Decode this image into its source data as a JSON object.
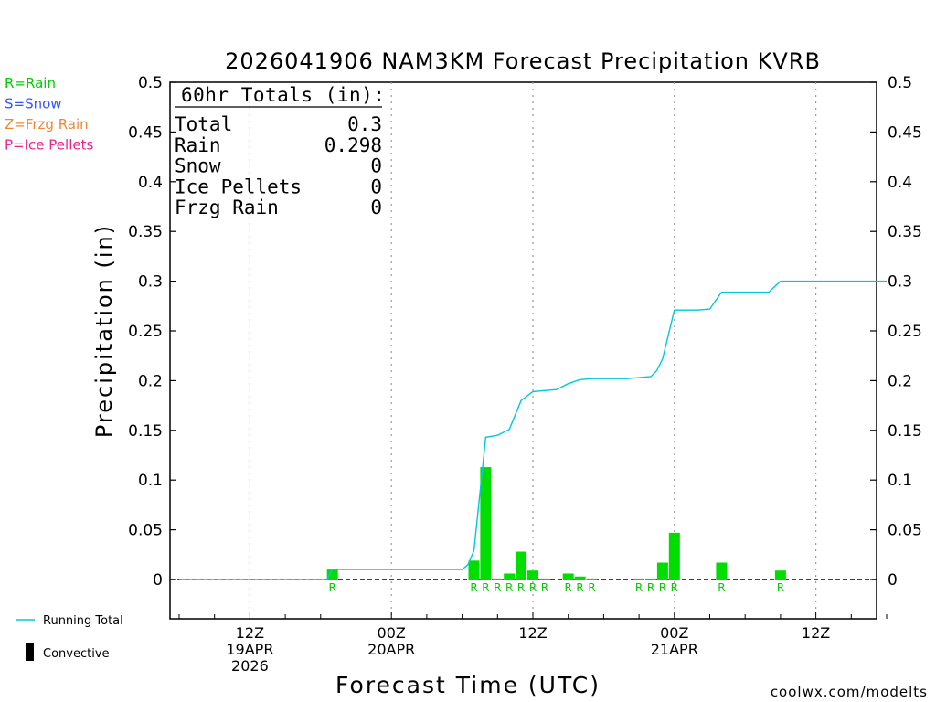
{
  "chart_data": {
    "type": "bar",
    "title": "2026041906 NAM3KM Forecast Precipitation KVRB",
    "xlabel": "Forecast Time (UTC)",
    "ylabel": "Precipitation (in)",
    "ylim": [
      -0.04,
      0.5
    ],
    "y_ticks": [
      0,
      0.05,
      0.1,
      0.15,
      0.2,
      0.25,
      0.3,
      0.35,
      0.4,
      0.45,
      0.5
    ],
    "y_tick_labels": [
      "0",
      "0.05",
      "0.1",
      "0.15",
      "0.2",
      "0.25",
      "0.3",
      "0.35",
      "0.4",
      "0.45",
      "0.5"
    ],
    "x_range_hours": [
      0,
      60
    ],
    "x_ticks": [
      {
        "hour": 6,
        "line1": "12Z",
        "line2": "19APR",
        "line3": "2026"
      },
      {
        "hour": 18,
        "line1": "00Z",
        "line2": "20APR",
        "line3": ""
      },
      {
        "hour": 30,
        "line1": "12Z",
        "line2": "",
        "line3": ""
      },
      {
        "hour": 42,
        "line1": "00Z",
        "line2": "21APR",
        "line3": ""
      },
      {
        "hour": 54,
        "line1": "12Z",
        "line2": "",
        "line3": ""
      }
    ],
    "bars": [
      {
        "hour": 13,
        "value": 0.01,
        "type": "R"
      },
      {
        "hour": 25,
        "value": 0.019,
        "type": "R"
      },
      {
        "hour": 26,
        "value": 0.113,
        "type": "R"
      },
      {
        "hour": 27,
        "value": 0.001,
        "type": "R"
      },
      {
        "hour": 28,
        "value": 0.006,
        "type": "R"
      },
      {
        "hour": 29,
        "value": 0.028,
        "type": "R"
      },
      {
        "hour": 30,
        "value": 0.009,
        "type": "R"
      },
      {
        "hour": 31,
        "value": 0.001,
        "type": "R"
      },
      {
        "hour": 33,
        "value": 0.006,
        "type": "R"
      },
      {
        "hour": 34,
        "value": 0.003,
        "type": "R"
      },
      {
        "hour": 35,
        "value": 0.001,
        "type": "R"
      },
      {
        "hour": 39,
        "value": 0.001,
        "type": "R"
      },
      {
        "hour": 40,
        "value": 0.001,
        "type": "R"
      },
      {
        "hour": 41,
        "value": 0.017,
        "type": "R"
      },
      {
        "hour": 42,
        "value": 0.047,
        "type": "R"
      },
      {
        "hour": 46,
        "value": 0.017,
        "type": "R"
      },
      {
        "hour": 51,
        "value": 0.009,
        "type": "R"
      }
    ],
    "running_total": {
      "hours": [
        0,
        12.5,
        13,
        24,
        24.5,
        25,
        26,
        27,
        28,
        29,
        30,
        31,
        32,
        33,
        34,
        35,
        36,
        37,
        38,
        39,
        40,
        40.5,
        41,
        42,
        43,
        44,
        45,
        46,
        47,
        48,
        49,
        50,
        51,
        52,
        60
      ],
      "values": [
        0,
        0,
        0.01,
        0.01,
        0.015,
        0.029,
        0.143,
        0.145,
        0.151,
        0.18,
        0.189,
        0.19,
        0.191,
        0.197,
        0.201,
        0.202,
        0.202,
        0.202,
        0.202,
        0.203,
        0.204,
        0.21,
        0.222,
        0.271,
        0.271,
        0.271,
        0.272,
        0.289,
        0.289,
        0.289,
        0.289,
        0.289,
        0.3,
        0.3,
        0.3
      ]
    },
    "totals_box": {
      "title": "60hr Totals (in):",
      "rows": [
        {
          "label": "Total",
          "value": "0.3"
        },
        {
          "label": "Rain",
          "value": "0.298"
        },
        {
          "label": "Snow",
          "value": "0"
        },
        {
          "label": "Ice Pellets",
          "value": "0"
        },
        {
          "label": "Frzg Rain",
          "value": "0"
        }
      ]
    },
    "type_legend": [
      {
        "text": "R=Rain",
        "color": "#00cc00"
      },
      {
        "text": "S=Snow",
        "color": "#3355ff"
      },
      {
        "text": "Z=Frzg Rain",
        "color": "#ee8833"
      },
      {
        "text": "P=Ice Pellets",
        "color": "#ee2288"
      }
    ],
    "series_legend": [
      {
        "text": "Running Total",
        "color": "#00c8d8"
      },
      {
        "text": "Convective",
        "color": "#000000"
      }
    ],
    "bar_color": "#00dd00",
    "line_color": "#00c8d8",
    "rain_letter_color": "#00cc00",
    "credit": "coolwx.com/modelts",
    "credit_color": "#dd2222"
  }
}
